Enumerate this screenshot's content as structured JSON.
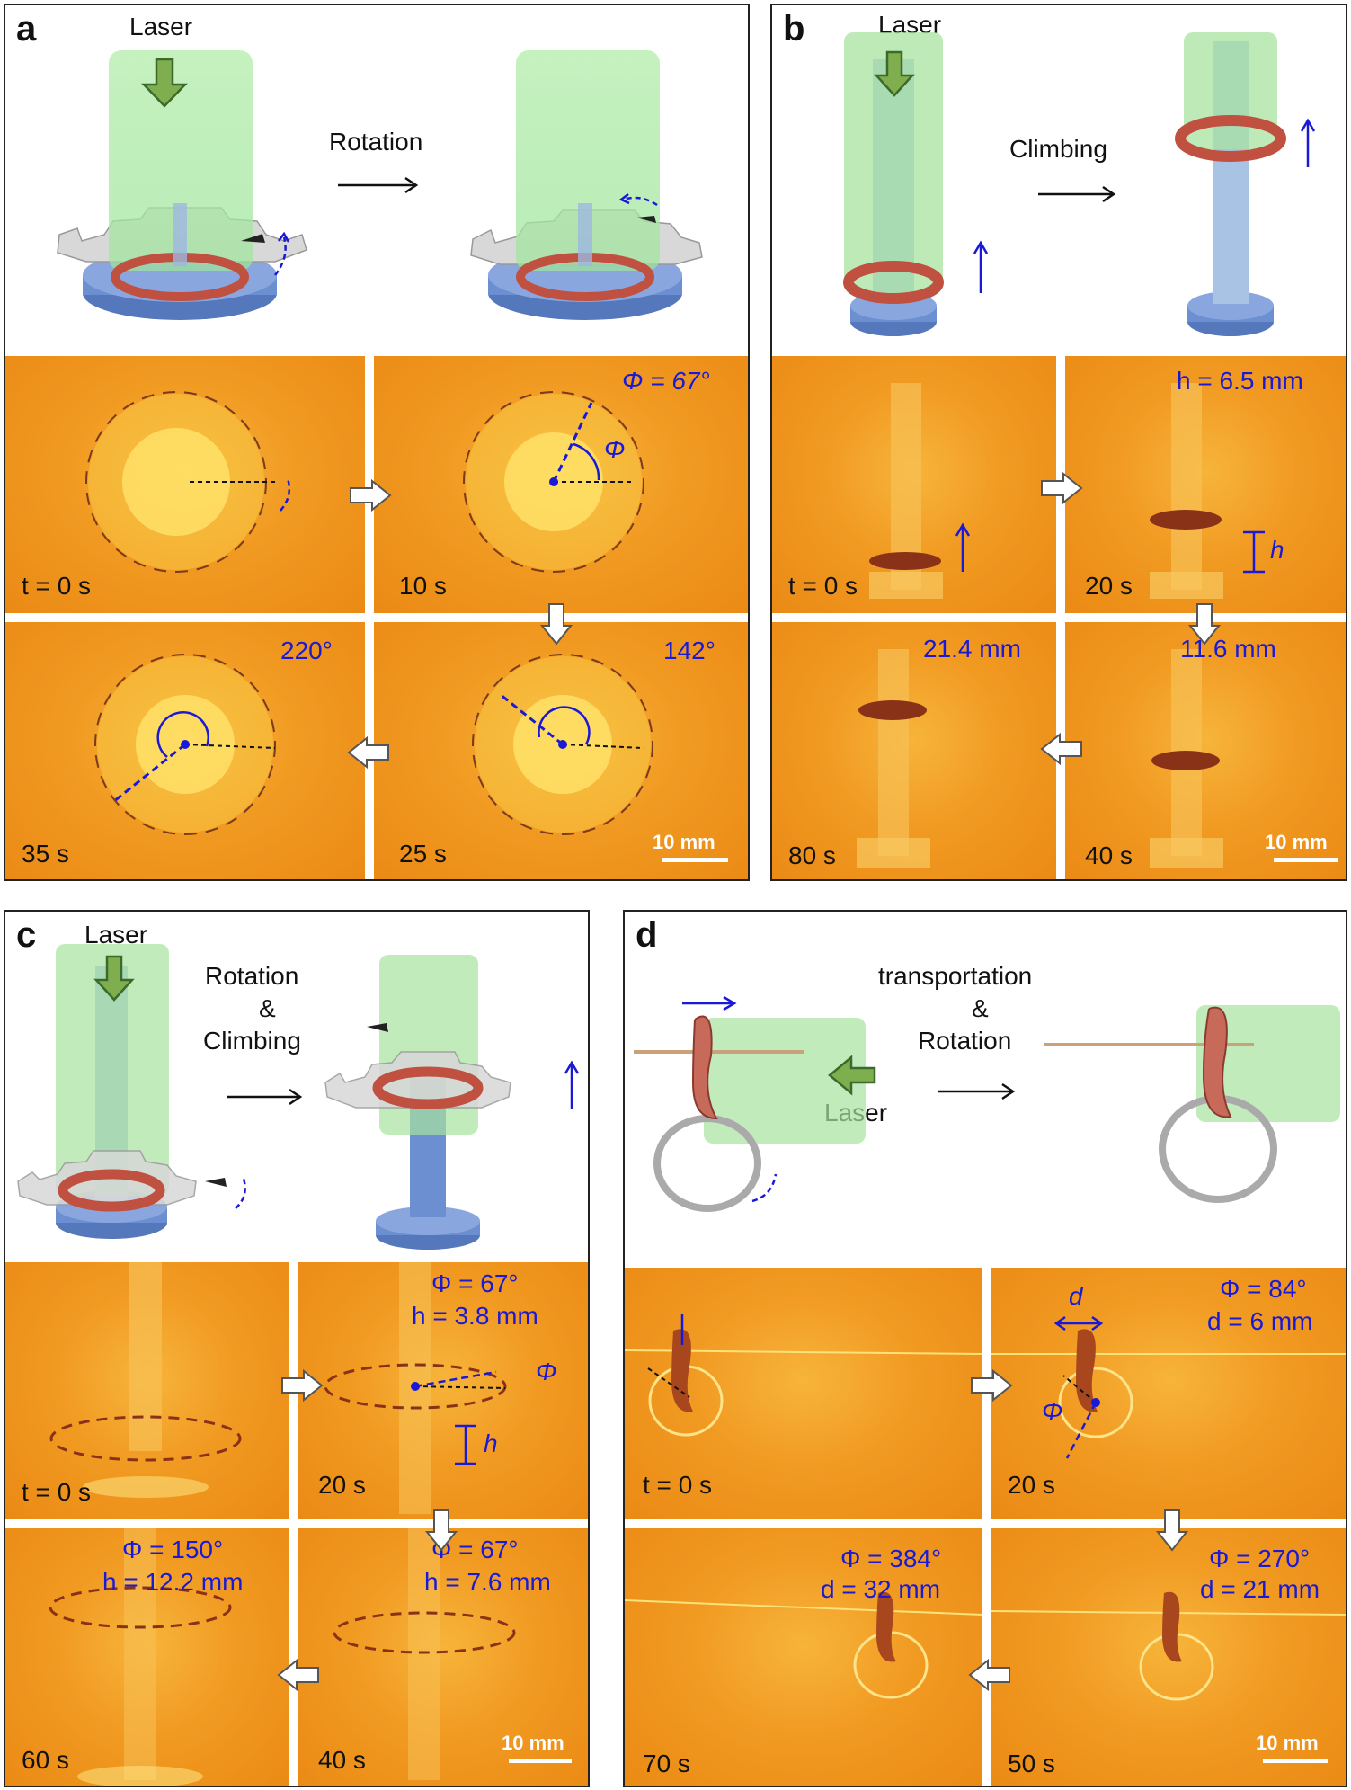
{
  "panels": {
    "a": {
      "label": "a",
      "laser": "Laser",
      "action": "Rotation",
      "annotations": {
        "phi_10s": "Φ = 67°",
        "phi_symbol": "Φ",
        "angle_35s": "220°",
        "angle_25s": "142°"
      },
      "times": {
        "t0": "t = 0 s",
        "t10": "10 s",
        "t35": "35 s",
        "t25": "25 s"
      },
      "scale": "10 mm"
    },
    "b": {
      "label": "b",
      "laser": "Laser",
      "action": "Climbing",
      "annotations": {
        "h_20s": "h = 6.5 mm",
        "h_symbol": "h",
        "h_80s": "21.4 mm",
        "h_40s": "11.6 mm"
      },
      "times": {
        "t0": "t = 0 s",
        "t20": "20 s",
        "t80": "80 s",
        "t40": "40 s"
      },
      "scale": "10 mm"
    },
    "c": {
      "label": "c",
      "laser": "Laser",
      "action_line1": "Rotation",
      "action_line2": "&",
      "action_line3": "Climbing",
      "annotations": {
        "phi_20s": "Φ = 67°",
        "h_20s": "h = 3.8 mm",
        "phi_symbol": "Φ",
        "h_symbol": "h",
        "phi_60s": "Φ = 150°",
        "h_60s": "h = 12.2 mm",
        "phi_40s": "Φ = 67°",
        "h_40s": "h = 7.6 mm"
      },
      "times": {
        "t0": "t = 0 s",
        "t20": "20 s",
        "t60": "60 s",
        "t40": "40 s"
      },
      "scale": "10 mm"
    },
    "d": {
      "label": "d",
      "laser": "Laser",
      "action_line1": "transportation",
      "action_line2": "&",
      "action_line3": "Rotation",
      "annotations": {
        "d_symbol": "d",
        "phi_symbol": "Φ",
        "phi_20s": "Φ = 84°",
        "d_20s": "d = 6 mm",
        "phi_70s": "Φ = 384°",
        "d_70s": "d = 32 mm",
        "phi_50s": "Φ = 270°",
        "d_50s": "d = 21 mm"
      },
      "times": {
        "t0": "t = 0 s",
        "t20": "20 s",
        "t70": "70 s",
        "t50": "50 s"
      },
      "scale": "10 mm"
    }
  },
  "colors": {
    "annotation": "#1a1ad6",
    "laser_beam": "#9ee59a",
    "photo_bg": "#f19a22"
  }
}
